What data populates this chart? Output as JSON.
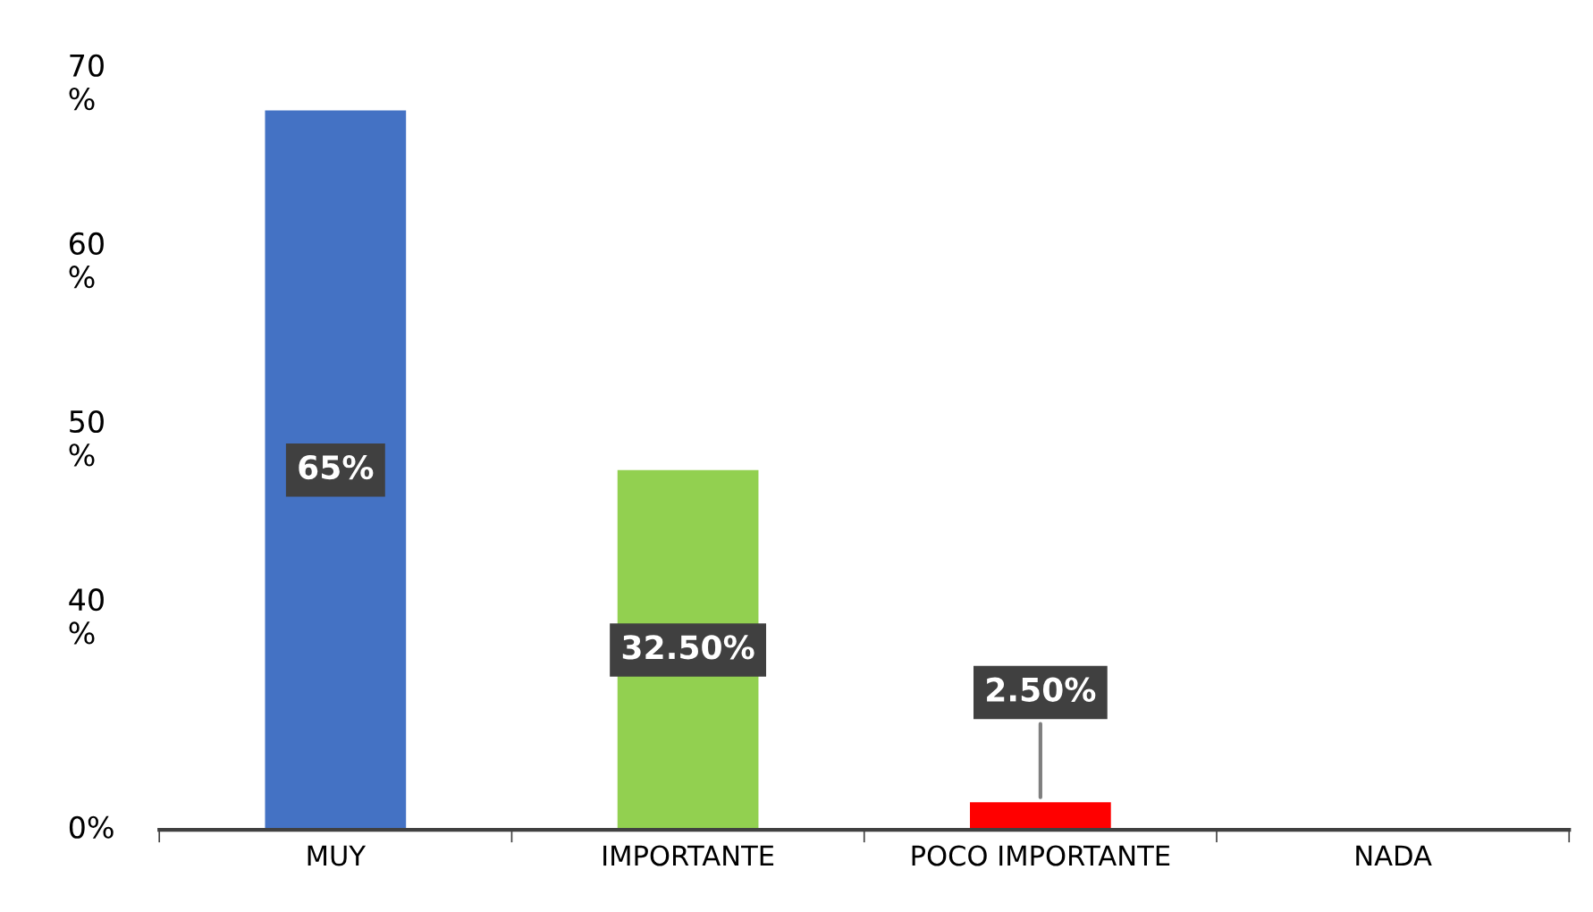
{
  "chart_data": {
    "type": "bar",
    "categories": [
      "MUY",
      "IMPORTANTE",
      "POCO IMPORTANTE",
      "NADA"
    ],
    "values": [
      65,
      32.5,
      2.5,
      0
    ],
    "colors": [
      "#4472c4",
      "#92d050",
      "#ff0000",
      "#ffffff"
    ],
    "value_labels": [
      "65%",
      "32.50%",
      "2.50%",
      null
    ],
    "annotations": [
      "70\n%",
      "60\n%",
      "50\n%",
      "40\n%",
      "0%"
    ],
    "grid": false,
    "legend": false
  }
}
